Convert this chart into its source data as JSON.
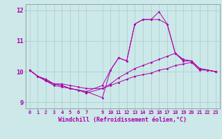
{
  "background_color": "#cce8e8",
  "line_color": "#aa00aa",
  "grid_color": "#aacccc",
  "xlabel": "Windchill (Refroidissement éolien,°C)",
  "xlim": [
    -0.5,
    23.5
  ],
  "ylim": [
    8.8,
    12.2
  ],
  "yticks": [
    9,
    10,
    11,
    12
  ],
  "xticks": [
    0,
    1,
    2,
    3,
    4,
    5,
    6,
    7,
    9,
    10,
    11,
    12,
    13,
    14,
    15,
    16,
    17,
    18,
    19,
    20,
    21,
    22,
    23
  ],
  "series": [
    {
      "x": [
        0,
        1,
        2,
        3,
        4,
        5,
        6,
        7,
        9,
        10,
        11,
        12,
        13,
        14,
        15,
        16,
        17,
        18,
        19,
        20,
        21,
        22,
        23
      ],
      "y": [
        10.05,
        9.85,
        9.75,
        9.6,
        9.55,
        9.45,
        9.4,
        9.35,
        9.15,
        10.05,
        10.45,
        10.35,
        11.55,
        11.7,
        11.7,
        11.95,
        11.55,
        10.6,
        10.35,
        10.35,
        10.1,
        10.05,
        10.0
      ]
    },
    {
      "x": [
        0,
        1,
        2,
        3,
        4,
        5,
        6,
        7,
        9,
        10,
        11,
        12,
        13,
        14,
        15,
        16,
        17,
        18,
        19,
        20,
        21,
        22,
        23
      ],
      "y": [
        10.05,
        9.85,
        9.75,
        9.6,
        9.55,
        9.45,
        9.4,
        9.35,
        9.55,
        10.05,
        10.45,
        10.35,
        11.55,
        11.7,
        11.7,
        11.7,
        11.55,
        10.6,
        10.35,
        10.35,
        10.1,
        10.05,
        10.0
      ]
    },
    {
      "x": [
        0,
        1,
        2,
        3,
        4,
        5,
        6,
        7,
        9,
        10,
        11,
        12,
        13,
        14,
        15,
        16,
        17,
        18,
        19,
        20,
        21,
        22,
        23
      ],
      "y": [
        10.05,
        9.85,
        9.7,
        9.55,
        9.5,
        9.45,
        9.4,
        9.3,
        9.45,
        9.55,
        9.65,
        9.75,
        9.85,
        9.9,
        9.95,
        10.05,
        10.1,
        10.2,
        10.25,
        10.3,
        10.05,
        10.05,
        10.0
      ]
    },
    {
      "x": [
        0,
        1,
        2,
        3,
        4,
        5,
        6,
        7,
        9,
        10,
        11,
        12,
        13,
        14,
        15,
        16,
        17,
        18,
        19,
        20,
        21,
        22,
        23
      ],
      "y": [
        10.05,
        9.85,
        9.7,
        9.6,
        9.6,
        9.55,
        9.5,
        9.45,
        9.45,
        9.6,
        9.8,
        9.95,
        10.1,
        10.2,
        10.3,
        10.4,
        10.5,
        10.6,
        10.4,
        10.35,
        10.1,
        10.05,
        10.0
      ]
    }
  ]
}
